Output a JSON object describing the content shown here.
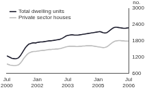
{
  "chart_data": {
    "type": "line",
    "y_label": "no.",
    "categories": [
      "Jul 2000",
      null,
      null,
      null,
      null,
      null,
      null,
      null,
      null,
      null,
      null,
      null,
      null,
      null,
      null,
      null,
      null,
      null,
      "Jan 2002",
      null,
      null,
      null,
      null,
      null,
      null,
      null,
      null,
      null,
      null,
      null,
      null,
      null,
      null,
      null,
      null,
      null,
      "Jul 2003",
      null,
      null,
      null,
      null,
      null,
      null,
      null,
      null,
      null,
      null,
      null,
      null,
      null,
      null,
      null,
      null,
      null,
      "Jan 2005",
      null,
      null,
      null,
      null,
      null,
      null,
      null,
      null,
      null,
      null,
      null,
      null,
      null,
      null,
      null,
      null,
      null,
      "Jul 2006"
    ],
    "series": [
      {
        "name": "Total dwelling units",
        "color": "#1c1c2c",
        "values": [
          1250,
          1220,
          1190,
          1160,
          1150,
          1140,
          1150,
          1180,
          1250,
          1350,
          1450,
          1550,
          1620,
          1680,
          1700,
          1720,
          1730,
          1720,
          1740,
          1750,
          1760,
          1760,
          1770,
          1780,
          1790,
          1800,
          1800,
          1810,
          1820,
          1830,
          1840,
          1850,
          1870,
          1900,
          1940,
          1980,
          2000,
          2010,
          2020,
          2020,
          2010,
          2010,
          2010,
          2020,
          2030,
          2040,
          2050,
          2060,
          2070,
          2080,
          2090,
          2100,
          2110,
          2120,
          2130,
          2140,
          2120,
          2100,
          2090,
          2100,
          2140,
          2190,
          2240,
          2280,
          2300,
          2300,
          2290,
          2280,
          2270,
          2260,
          2260,
          2270,
          2280
        ]
      },
      {
        "name": "Private sector houses",
        "color": "#bdbdbd",
        "values": [
          950,
          930,
          910,
          900,
          890,
          890,
          900,
          920,
          980,
          1060,
          1150,
          1230,
          1300,
          1350,
          1380,
          1400,
          1410,
          1410,
          1420,
          1430,
          1440,
          1450,
          1450,
          1460,
          1470,
          1480,
          1480,
          1490,
          1490,
          1500,
          1500,
          1510,
          1520,
          1540,
          1560,
          1580,
          1590,
          1600,
          1600,
          1600,
          1600,
          1590,
          1590,
          1600,
          1600,
          1610,
          1610,
          1620,
          1620,
          1620,
          1620,
          1610,
          1600,
          1590,
          1580,
          1570,
          1560,
          1550,
          1560,
          1580,
          1620,
          1670,
          1720,
          1760,
          1790,
          1800,
          1810,
          1810,
          1800,
          1800,
          1790,
          1790,
          1790
        ]
      }
    ],
    "ylim": [
      600,
      3000
    ],
    "yticks": [
      600,
      1200,
      1800,
      2400,
      3000
    ],
    "grid": false,
    "legend": "top-left"
  }
}
